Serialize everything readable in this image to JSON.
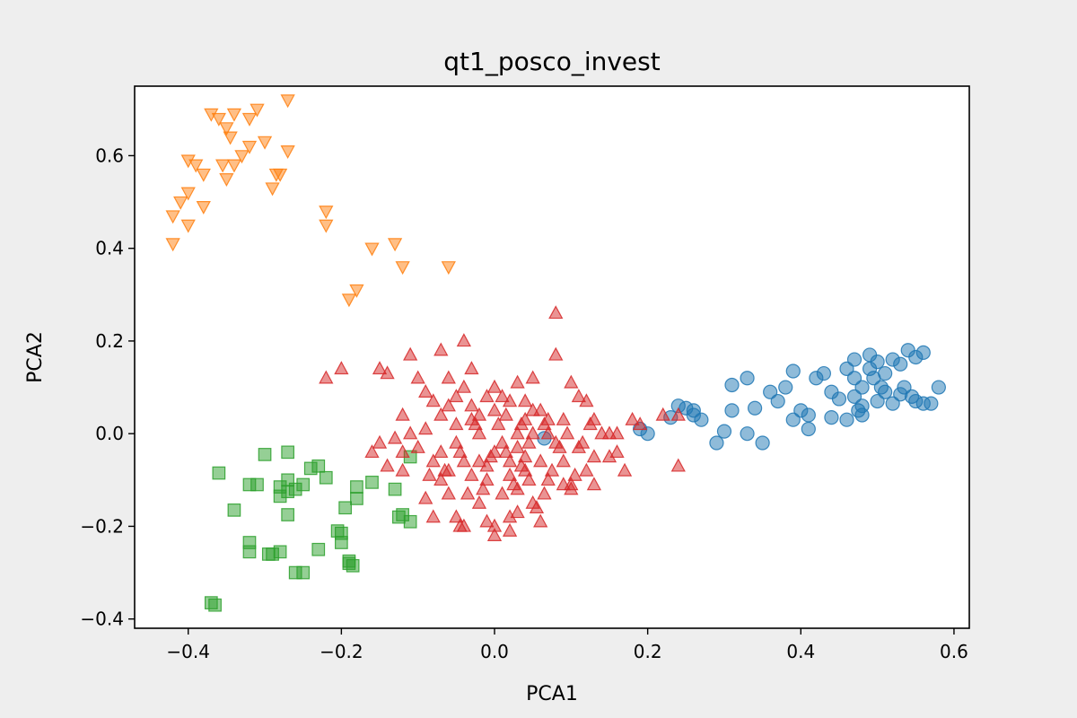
{
  "chart_data": {
    "type": "scatter",
    "title": "qt1_posco_invest",
    "xlabel": "PCA1",
    "ylabel": "PCA2",
    "xlim": [
      -0.47,
      0.62
    ],
    "ylim": [
      -0.42,
      0.75
    ],
    "xticks": [
      -0.4,
      -0.2,
      0.0,
      0.2,
      0.4,
      0.6
    ],
    "yticks": [
      -0.4,
      -0.2,
      0.0,
      0.2,
      0.4,
      0.6
    ],
    "xtick_labels": [
      "−0.4",
      "−0.2",
      "0.0",
      "0.2",
      "0.4",
      "0.6"
    ],
    "ytick_labels": [
      "−0.4",
      "−0.2",
      "0.0",
      "0.2",
      "0.4",
      "0.6"
    ],
    "grid": false,
    "series": [
      {
        "marker": "circle",
        "color": "#1f77b4",
        "points": [
          [
            0.19,
            0.01
          ],
          [
            0.2,
            0.0
          ],
          [
            0.23,
            0.035
          ],
          [
            0.25,
            0.055
          ],
          [
            0.26,
            0.05
          ],
          [
            0.27,
            0.03
          ],
          [
            0.29,
            -0.02
          ],
          [
            0.3,
            0.005
          ],
          [
            0.31,
            0.05
          ],
          [
            0.31,
            0.105
          ],
          [
            0.33,
            0.12
          ],
          [
            0.33,
            0.0
          ],
          [
            0.34,
            0.055
          ],
          [
            0.35,
            -0.02
          ],
          [
            0.36,
            0.09
          ],
          [
            0.37,
            0.07
          ],
          [
            0.38,
            0.1
          ],
          [
            0.39,
            0.135
          ],
          [
            0.39,
            0.03
          ],
          [
            0.4,
            0.05
          ],
          [
            0.41,
            0.04
          ],
          [
            0.41,
            0.01
          ],
          [
            0.42,
            0.12
          ],
          [
            0.43,
            0.13
          ],
          [
            0.44,
            0.035
          ],
          [
            0.45,
            0.075
          ],
          [
            0.46,
            0.03
          ],
          [
            0.46,
            0.14
          ],
          [
            0.47,
            0.16
          ],
          [
            0.47,
            0.12
          ],
          [
            0.47,
            0.08
          ],
          [
            0.48,
            0.1
          ],
          [
            0.48,
            0.04
          ],
          [
            0.48,
            0.06
          ],
          [
            0.49,
            0.17
          ],
          [
            0.49,
            0.14
          ],
          [
            0.5,
            0.07
          ],
          [
            0.5,
            0.155
          ],
          [
            0.51,
            0.09
          ],
          [
            0.51,
            0.13
          ],
          [
            0.52,
            0.16
          ],
          [
            0.52,
            0.065
          ],
          [
            0.53,
            0.15
          ],
          [
            0.53,
            0.085
          ],
          [
            0.54,
            0.18
          ],
          [
            0.55,
            0.07
          ],
          [
            0.55,
            0.165
          ],
          [
            0.56,
            0.175
          ],
          [
            0.56,
            0.065
          ],
          [
            0.57,
            0.065
          ],
          [
            0.58,
            0.1
          ],
          [
            0.24,
            0.06
          ],
          [
            0.26,
            0.04
          ],
          [
            0.44,
            0.09
          ],
          [
            0.475,
            0.05
          ],
          [
            0.495,
            0.12
          ],
          [
            0.505,
            0.1
          ],
          [
            0.535,
            0.1
          ],
          [
            0.545,
            0.08
          ],
          [
            0.065,
            -0.01
          ]
        ]
      },
      {
        "marker": "triangle-down",
        "color": "#ff7f0e",
        "points": [
          [
            -0.42,
            0.41
          ],
          [
            -0.42,
            0.47
          ],
          [
            -0.41,
            0.5
          ],
          [
            -0.4,
            0.45
          ],
          [
            -0.4,
            0.52
          ],
          [
            -0.4,
            0.59
          ],
          [
            -0.39,
            0.58
          ],
          [
            -0.38,
            0.49
          ],
          [
            -0.38,
            0.56
          ],
          [
            -0.37,
            0.69
          ],
          [
            -0.36,
            0.68
          ],
          [
            -0.35,
            0.66
          ],
          [
            -0.35,
            0.55
          ],
          [
            -0.34,
            0.58
          ],
          [
            -0.34,
            0.69
          ],
          [
            -0.33,
            0.6
          ],
          [
            -0.32,
            0.62
          ],
          [
            -0.32,
            0.68
          ],
          [
            -0.31,
            0.7
          ],
          [
            -0.3,
            0.63
          ],
          [
            -0.29,
            0.53
          ],
          [
            -0.28,
            0.56
          ],
          [
            -0.27,
            0.61
          ],
          [
            -0.27,
            0.72
          ],
          [
            -0.22,
            0.48
          ],
          [
            -0.22,
            0.45
          ],
          [
            -0.16,
            0.4
          ],
          [
            -0.18,
            0.31
          ],
          [
            -0.19,
            0.29
          ],
          [
            -0.13,
            0.41
          ],
          [
            -0.12,
            0.36
          ],
          [
            -0.06,
            0.36
          ],
          [
            -0.345,
            0.64
          ],
          [
            -0.355,
            0.58
          ],
          [
            -0.285,
            0.56
          ]
        ]
      },
      {
        "marker": "square",
        "color": "#2ca02c",
        "points": [
          [
            -0.37,
            -0.365
          ],
          [
            -0.365,
            -0.37
          ],
          [
            -0.36,
            -0.085
          ],
          [
            -0.34,
            -0.165
          ],
          [
            -0.32,
            -0.11
          ],
          [
            -0.31,
            -0.11
          ],
          [
            -0.32,
            -0.235
          ],
          [
            -0.32,
            -0.255
          ],
          [
            -0.3,
            -0.045
          ],
          [
            -0.29,
            -0.26
          ],
          [
            -0.28,
            -0.255
          ],
          [
            -0.28,
            -0.115
          ],
          [
            -0.28,
            -0.135
          ],
          [
            -0.27,
            -0.04
          ],
          [
            -0.27,
            -0.125
          ],
          [
            -0.27,
            -0.1
          ],
          [
            -0.27,
            -0.175
          ],
          [
            -0.26,
            -0.3
          ],
          [
            -0.26,
            -0.12
          ],
          [
            -0.25,
            -0.3
          ],
          [
            -0.25,
            -0.11
          ],
          [
            -0.24,
            -0.075
          ],
          [
            -0.23,
            -0.07
          ],
          [
            -0.23,
            -0.25
          ],
          [
            -0.22,
            -0.095
          ],
          [
            -0.2,
            -0.215
          ],
          [
            -0.2,
            -0.235
          ],
          [
            -0.195,
            -0.16
          ],
          [
            -0.19,
            -0.28
          ],
          [
            -0.19,
            -0.275
          ],
          [
            -0.18,
            -0.14
          ],
          [
            -0.18,
            -0.115
          ],
          [
            -0.16,
            -0.105
          ],
          [
            -0.13,
            -0.12
          ],
          [
            -0.12,
            -0.175
          ],
          [
            -0.11,
            -0.19
          ],
          [
            -0.11,
            -0.05
          ],
          [
            -0.125,
            -0.18
          ],
          [
            -0.205,
            -0.21
          ],
          [
            -0.185,
            -0.285
          ],
          [
            -0.295,
            -0.26
          ]
        ]
      },
      {
        "marker": "triangle-up",
        "color": "#d62728",
        "points": [
          [
            -0.22,
            0.12
          ],
          [
            -0.2,
            0.14
          ],
          [
            -0.15,
            0.14
          ],
          [
            -0.14,
            0.13
          ],
          [
            -0.12,
            -0.08
          ],
          [
            -0.12,
            -0.04
          ],
          [
            -0.11,
            0.17
          ],
          [
            -0.1,
            0.12
          ],
          [
            -0.09,
            0.09
          ],
          [
            -0.08,
            0.07
          ],
          [
            -0.07,
            0.18
          ],
          [
            -0.06,
            0.12
          ],
          [
            -0.04,
            0.2
          ],
          [
            -0.03,
            0.14
          ],
          [
            -0.03,
            0.03
          ],
          [
            -0.02,
            0.0
          ],
          [
            -0.01,
            0.08
          ],
          [
            0.0,
            0.05
          ],
          [
            0.01,
            0.08
          ],
          [
            0.02,
            0.07
          ],
          [
            0.03,
            0.11
          ],
          [
            0.04,
            0.07
          ],
          [
            0.05,
            0.12
          ],
          [
            0.07,
            0.03
          ],
          [
            0.08,
            0.17
          ],
          [
            0.08,
            0.26
          ],
          [
            0.1,
            0.11
          ],
          [
            0.11,
            0.08
          ],
          [
            0.12,
            0.07
          ],
          [
            0.13,
            0.03
          ],
          [
            0.14,
            0.0
          ],
          [
            0.15,
            -0.05
          ],
          [
            0.16,
            -0.04
          ],
          [
            0.17,
            -0.08
          ],
          [
            0.18,
            0.03
          ],
          [
            0.19,
            0.02
          ],
          [
            0.22,
            0.04
          ],
          [
            0.24,
            0.04
          ],
          [
            0.24,
            -0.07
          ],
          [
            -0.13,
            -0.01
          ],
          [
            -0.12,
            0.04
          ],
          [
            -0.1,
            -0.03
          ],
          [
            -0.09,
            0.01
          ],
          [
            -0.08,
            -0.06
          ],
          [
            -0.07,
            -0.1
          ],
          [
            -0.06,
            -0.13
          ],
          [
            -0.05,
            -0.02
          ],
          [
            -0.05,
            -0.18
          ],
          [
            -0.04,
            -0.2
          ],
          [
            -0.03,
            -0.09
          ],
          [
            -0.02,
            -0.15
          ],
          [
            -0.02,
            0.04
          ],
          [
            -0.01,
            -0.1
          ],
          [
            0.0,
            -0.04
          ],
          [
            0.0,
            -0.2
          ],
          [
            0.01,
            -0.02
          ],
          [
            0.01,
            -0.13
          ],
          [
            0.02,
            -0.18
          ],
          [
            0.02,
            -0.06
          ],
          [
            0.03,
            -0.12
          ],
          [
            0.03,
            0.0
          ],
          [
            0.04,
            -0.08
          ],
          [
            0.04,
            0.03
          ],
          [
            0.05,
            -0.15
          ],
          [
            0.05,
            0.0
          ],
          [
            0.06,
            -0.06
          ],
          [
            0.07,
            -0.1
          ],
          [
            0.08,
            -0.02
          ],
          [
            0.09,
            -0.06
          ],
          [
            0.1,
            -0.12
          ],
          [
            0.11,
            -0.03
          ],
          [
            0.12,
            -0.08
          ],
          [
            0.13,
            -0.05
          ],
          [
            -0.04,
            0.1
          ],
          [
            -0.06,
            0.06
          ],
          [
            -0.03,
            0.06
          ],
          [
            0.0,
            0.1
          ],
          [
            -0.02,
            -0.06
          ],
          [
            -0.01,
            -0.07
          ],
          [
            0.02,
            -0.09
          ],
          [
            0.03,
            -0.03
          ],
          [
            0.04,
            -0.05
          ],
          [
            0.06,
            0.05
          ],
          [
            0.07,
            0.0
          ],
          [
            0.09,
            0.03
          ],
          [
            -0.11,
            0.0
          ],
          [
            -0.09,
            -0.14
          ],
          [
            -0.08,
            -0.18
          ],
          [
            -0.07,
            -0.04
          ],
          [
            -0.06,
            -0.08
          ],
          [
            -0.05,
            0.02
          ],
          [
            -0.04,
            -0.06
          ],
          [
            -0.035,
            -0.13
          ],
          [
            -0.025,
            0.02
          ],
          [
            -0.015,
            -0.12
          ],
          [
            -0.005,
            -0.05
          ],
          [
            0.005,
            0.02
          ],
          [
            0.015,
            -0.04
          ],
          [
            0.025,
            -0.11
          ],
          [
            0.035,
            -0.07
          ],
          [
            0.045,
            -0.1
          ],
          [
            0.055,
            -0.16
          ],
          [
            0.065,
            -0.13
          ],
          [
            0.075,
            -0.08
          ],
          [
            0.085,
            -0.03
          ],
          [
            0.095,
            0.0
          ],
          [
            0.105,
            -0.09
          ],
          [
            0.115,
            -0.02
          ],
          [
            0.125,
            0.02
          ],
          [
            -0.15,
            -0.02
          ],
          [
            -0.16,
            -0.04
          ],
          [
            -0.14,
            -0.07
          ],
          [
            0.02,
            -0.21
          ],
          [
            0.0,
            -0.22
          ],
          [
            -0.01,
            -0.19
          ],
          [
            0.06,
            -0.19
          ],
          [
            0.03,
            -0.17
          ],
          [
            -0.045,
            -0.04
          ],
          [
            0.015,
            0.04
          ],
          [
            0.05,
            0.05
          ],
          [
            0.09,
            -0.11
          ],
          [
            0.1,
            -0.11
          ],
          [
            0.13,
            -0.11
          ],
          [
            0.15,
            0.0
          ],
          [
            0.16,
            0.0
          ],
          [
            -0.045,
            -0.2
          ],
          [
            -0.05,
            0.08
          ],
          [
            -0.07,
            0.04
          ],
          [
            0.065,
            0.02
          ],
          [
            0.045,
            -0.02
          ],
          [
            0.035,
            0.02
          ],
          [
            -0.085,
            -0.09
          ],
          [
            -0.065,
            -0.08
          ]
        ]
      }
    ]
  }
}
